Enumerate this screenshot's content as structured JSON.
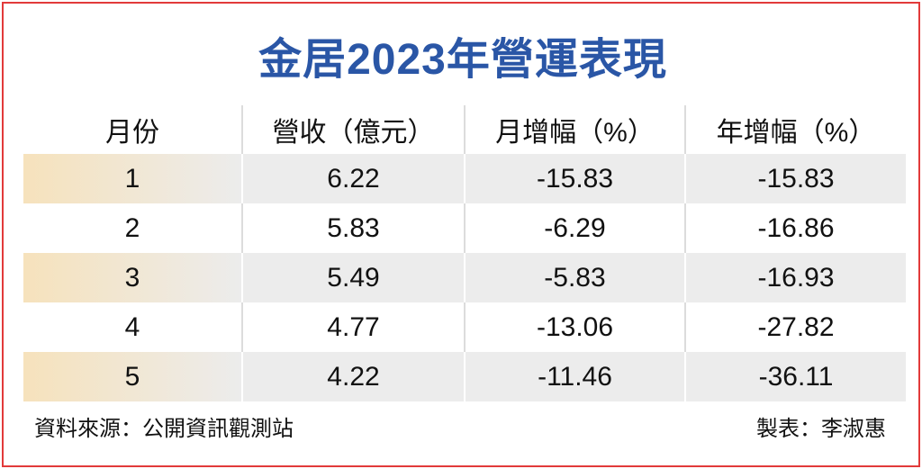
{
  "header": {
    "title": "金居2023年營運表現"
  },
  "table": {
    "columns": [
      "月份",
      "營收（億元）",
      "月增幅（%）",
      "年增幅（%）"
    ],
    "rows": [
      [
        "1",
        "6.22",
        "-15.83",
        "-15.83"
      ],
      [
        "2",
        "5.83",
        "-6.29",
        "-16.86"
      ],
      [
        "3",
        "5.49",
        "-5.83",
        "-16.93"
      ],
      [
        "4",
        "4.77",
        "-13.06",
        "-27.82"
      ],
      [
        "5",
        "4.22",
        "-11.46",
        "-36.11"
      ]
    ]
  },
  "footer": {
    "source": "資料來源：公開資訊觀測站",
    "author": "製表：李淑惠"
  }
}
